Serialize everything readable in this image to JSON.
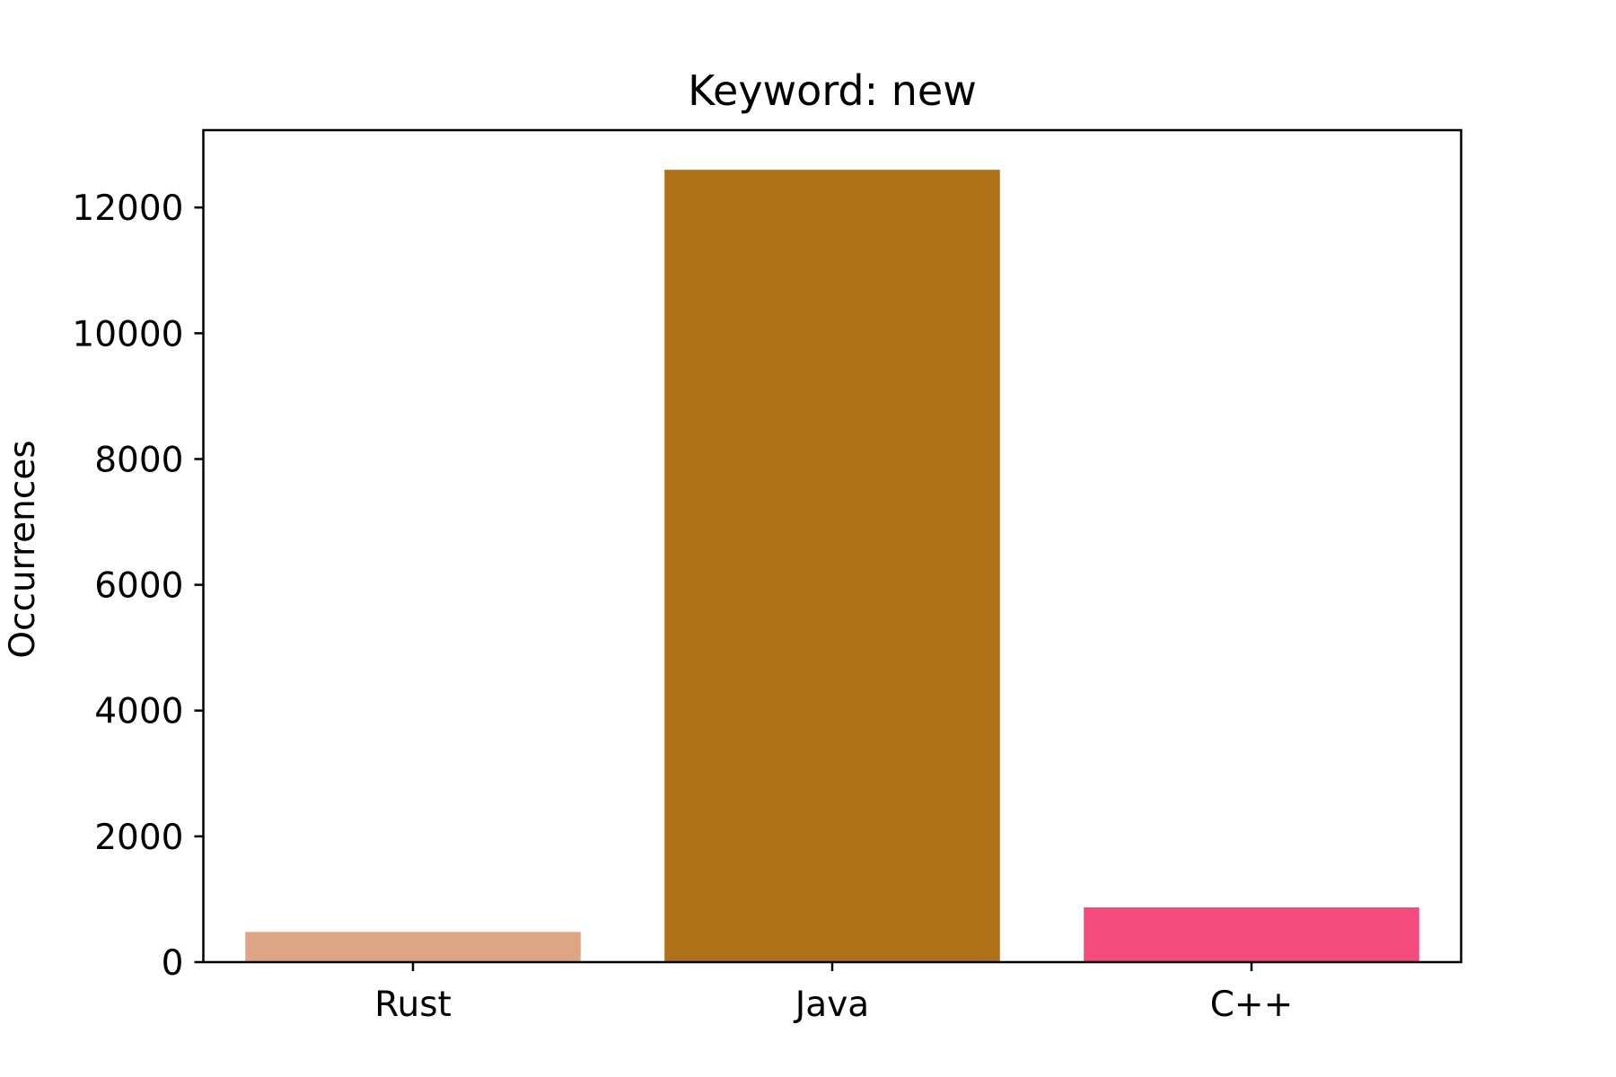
{
  "chart_data": {
    "type": "bar",
    "title": "Keyword: new",
    "xlabel": "",
    "ylabel": "Occurrences",
    "categories": [
      "Rust",
      "Java",
      "C++"
    ],
    "values": [
      480,
      12600,
      870
    ],
    "colors": [
      "#dea584",
      "#b07219",
      "#f34b7d"
    ],
    "ylim": [
      0,
      13230
    ],
    "yticks": [
      0,
      2000,
      4000,
      6000,
      8000,
      10000,
      12000
    ],
    "grid": false,
    "legend": "none"
  }
}
